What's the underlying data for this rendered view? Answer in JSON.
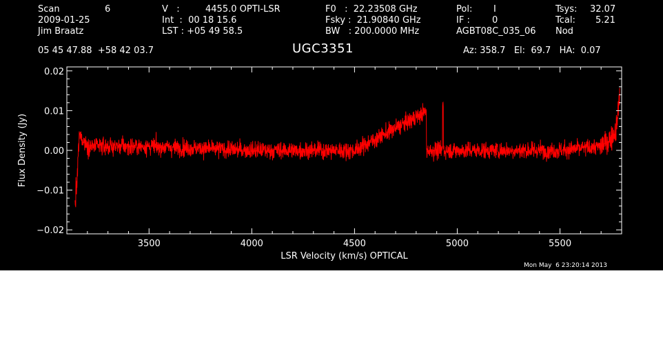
{
  "header": {
    "col1": [
      "Scan",
      "6",
      "2009-01-25",
      "Jim Braatz"
    ],
    "col2": [
      "V   :",
      "4455.0 OPTI-LSR",
      "Int  :  00 18 15.6",
      "LST : +05 49 58.5"
    ],
    "col3": [
      "F0   :  22.23508 GHz",
      "Fsky :  21.90840 GHz",
      "BW   : 200.0000 MHz"
    ],
    "col4": [
      "Pol:",
      "I",
      "IF :",
      "0",
      "AGBT08C_035_06"
    ],
    "col5": [
      "Tsys:",
      "32.07",
      "Tcal:",
      "5.21",
      "Nod"
    ],
    "coords": "05 45 47.88  +58 42 03.7",
    "source": "UGC3351",
    "pointing": "Az: 358.7   El:  69.7   HA:  0.07"
  },
  "timestamp": "Mon May  6 23:20:14 2013",
  "colors": {
    "background": "#000000",
    "axes": "#ffffff",
    "trace": "#ff0000"
  },
  "chart_data": {
    "type": "line",
    "xlabel": "LSR Velocity (km/s) OPTICAL",
    "ylabel": "Flux Density (Jy)",
    "xlim": [
      3100,
      5800
    ],
    "ylim": [
      -0.021,
      0.021
    ],
    "xticks": [
      3500,
      4000,
      4500,
      5000,
      5500
    ],
    "xtick_labels": [
      "3500",
      "4000",
      "4500",
      "5000",
      "5500"
    ],
    "yticks": [
      -0.02,
      -0.01,
      0.0,
      0.01,
      0.02
    ],
    "ytick_labels": [
      "−0.02",
      "−0.01",
      "0.00",
      "0.01",
      "0.02"
    ],
    "grid": false,
    "series": [
      {
        "color": "#ff0000",
        "x_start": 3140,
        "x_end": 5790,
        "baseline": 0.0,
        "noise_rms": 0.0027,
        "x": [
          3140,
          3150,
          3160,
          3200,
          3300,
          3500,
          4000,
          4500,
          4930,
          5000,
          5500,
          5700,
          5750,
          5770,
          5780,
          5790
        ],
        "y": [
          -0.014,
          -0.008,
          0.004,
          0.001,
          0.001,
          0.001,
          0.0,
          0.0,
          0.012,
          0.0,
          0.0,
          0.001,
          0.003,
          0.005,
          0.008,
          0.015
        ]
      }
    ]
  }
}
